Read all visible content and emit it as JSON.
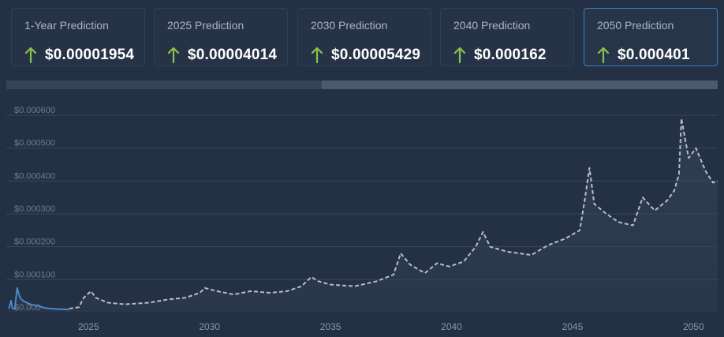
{
  "cards": [
    {
      "label": "1-Year Prediction",
      "value": "$0.00001954",
      "selected": false
    },
    {
      "label": "2025 Prediction",
      "value": "$0.00004014",
      "selected": false
    },
    {
      "label": "2030 Prediction",
      "value": "$0.00005429",
      "selected": false
    },
    {
      "label": "2040 Prediction",
      "value": "$0.000162",
      "selected": false
    },
    {
      "label": "2050 Prediction",
      "value": "$0.000401",
      "selected": true
    }
  ],
  "arrow_icon": "arrow-up-icon",
  "colors": {
    "background": "#243043",
    "arrow_up": "#8bc34a",
    "history_line": "#4a90d9",
    "prediction_line": "#b8bec8",
    "selected_border": "#3f7fc4"
  },
  "chart_data": {
    "type": "line",
    "title": "",
    "xlabel": "",
    "ylabel": "",
    "xlim": [
      2021.6,
      2051.0
    ],
    "ylim": [
      0,
      0.0006
    ],
    "x_ticks": [
      "2025",
      "2030",
      "2035",
      "2040",
      "2045",
      "2050"
    ],
    "y_ticks": [
      "$0.000",
      "$0.000100",
      "$0.000200",
      "$0.000300",
      "$0.000400",
      "$0.000500",
      "$0.000600"
    ],
    "grid": true,
    "series": [
      {
        "style": "solid",
        "points": [
          [
            2021.7,
            1.2e-05
          ],
          [
            2021.8,
            3.6e-05
          ],
          [
            2021.85,
            1.4e-05
          ],
          [
            2021.95,
            1e-05
          ],
          [
            2022.0,
            4.5e-05
          ],
          [
            2022.05,
            7.5e-05
          ],
          [
            2022.12,
            5.5e-05
          ],
          [
            2022.2,
            4.2e-05
          ],
          [
            2022.3,
            3.5e-05
          ],
          [
            2022.45,
            3e-05
          ],
          [
            2022.6,
            2.5e-05
          ],
          [
            2022.8,
            2.2e-05
          ],
          [
            2023.0,
            1.8e-05
          ],
          [
            2023.2,
            1.4e-05
          ],
          [
            2023.4,
            1.2e-05
          ],
          [
            2023.6,
            1.1e-05
          ],
          [
            2023.8,
            1e-05
          ],
          [
            2024.0,
            1e-05
          ],
          [
            2024.2,
            9e-06
          ]
        ]
      },
      {
        "style": "dashed",
        "points": [
          [
            2024.2,
            1.2e-05
          ],
          [
            2024.6,
            1.6e-05
          ],
          [
            2024.8,
            4.5e-05
          ],
          [
            2025.1,
            6.5e-05
          ],
          [
            2025.3,
            4.5e-05
          ],
          [
            2025.8,
            3e-05
          ],
          [
            2026.5,
            2.5e-05
          ],
          [
            2027.5,
            3e-05
          ],
          [
            2028.3,
            4e-05
          ],
          [
            2029.0,
            4.5e-05
          ],
          [
            2029.6,
            6e-05
          ],
          [
            2029.8,
            7.5e-05
          ],
          [
            2030.3,
            6.5e-05
          ],
          [
            2031.0,
            5.5e-05
          ],
          [
            2031.7,
            6.5e-05
          ],
          [
            2032.5,
            6e-05
          ],
          [
            2033.2,
            6.5e-05
          ],
          [
            2033.8,
            8e-05
          ],
          [
            2034.2,
            0.000108
          ],
          [
            2034.5,
            9.5e-05
          ],
          [
            2035.0,
            8.5e-05
          ],
          [
            2036.0,
            8e-05
          ],
          [
            2036.9,
            9.5e-05
          ],
          [
            2037.6,
            0.000115
          ],
          [
            2037.9,
            0.00018
          ],
          [
            2038.3,
            0.000145
          ],
          [
            2038.9,
            0.00012
          ],
          [
            2039.4,
            0.00015
          ],
          [
            2039.9,
            0.00014
          ],
          [
            2040.5,
            0.000155
          ],
          [
            2041.0,
            0.0002
          ],
          [
            2041.3,
            0.000245
          ],
          [
            2041.6,
            0.0002
          ],
          [
            2042.3,
            0.000185
          ],
          [
            2043.3,
            0.000175
          ],
          [
            2044.0,
            0.000205
          ],
          [
            2044.7,
            0.000225
          ],
          [
            2045.3,
            0.00025
          ],
          [
            2045.5,
            0.00034
          ],
          [
            2045.7,
            0.00044
          ],
          [
            2045.9,
            0.00033
          ],
          [
            2046.4,
            0.0003
          ],
          [
            2046.9,
            0.000275
          ],
          [
            2047.5,
            0.000265
          ],
          [
            2047.9,
            0.00035
          ],
          [
            2048.4,
            0.00031
          ],
          [
            2048.9,
            0.00034
          ],
          [
            2049.2,
            0.00037
          ],
          [
            2049.4,
            0.00042
          ],
          [
            2049.5,
            0.00059
          ],
          [
            2049.8,
            0.00047
          ],
          [
            2050.1,
            0.0005
          ],
          [
            2050.5,
            0.00043
          ],
          [
            2050.8,
            0.000395
          ],
          [
            2051.0,
            0.0004
          ]
        ]
      }
    ]
  }
}
